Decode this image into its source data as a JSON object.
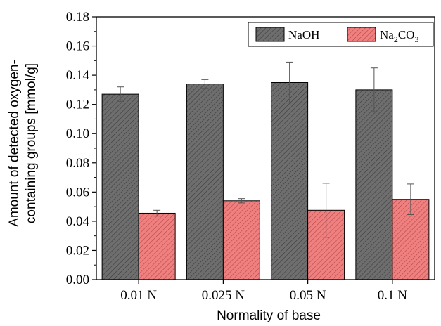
{
  "chart_data": {
    "type": "bar",
    "categories": [
      "0.01 N",
      "0.025 N",
      "0.05 N",
      "0.1 N"
    ],
    "series": [
      {
        "name": "NaOH",
        "name_base": "Na",
        "values": [
          0.127,
          0.134,
          0.135,
          0.13
        ],
        "errors": [
          0.005,
          0.003,
          0.014,
          0.015
        ],
        "color": "#6e6e6e"
      },
      {
        "name": "Na2CO3",
        "name_parts": [
          "Na",
          "2",
          "CO",
          "3"
        ],
        "values": [
          0.0455,
          0.054,
          0.0475,
          0.055
        ],
        "errors": [
          0.002,
          0.0015,
          0.0185,
          0.0105
        ],
        "color": "#f08080"
      }
    ],
    "yticks": [
      "0.00",
      "0.02",
      "0.04",
      "0.06",
      "0.08",
      "0.10",
      "0.12",
      "0.14",
      "0.16",
      "0.18"
    ],
    "ylim": [
      0,
      0.18
    ],
    "xlabel": "Normality of base",
    "ylabel_lines": [
      "Amount of detected oxygen-",
      "containing groups [mmol/g]"
    ],
    "legend_position": "top-right",
    "grid": false
  }
}
